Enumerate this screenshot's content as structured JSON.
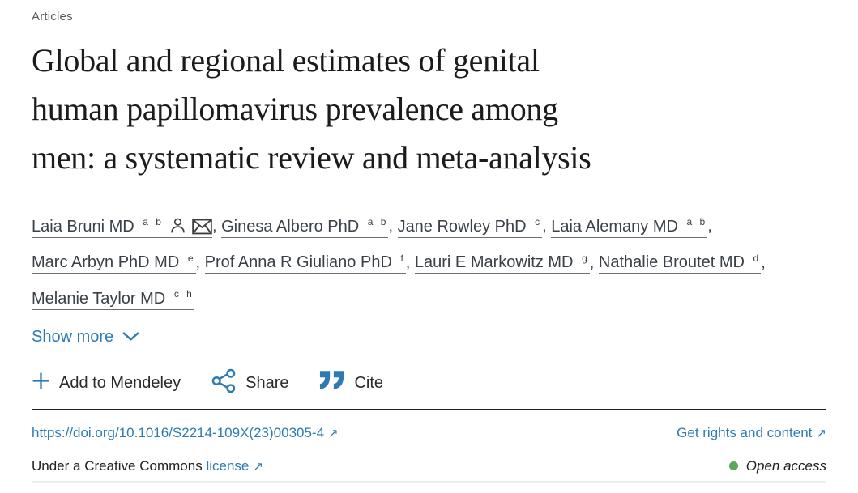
{
  "eyebrow": "Articles",
  "title": {
    "lines": [
      "Global and regional estimates of genital",
      "human papillomavirus prevalence among",
      "men: a systematic review and meta-analysis"
    ]
  },
  "authors": {
    "list": [
      {
        "name": "Laia Bruni MD",
        "sup": "a b",
        "icons": [
          "person-icon",
          "envelope-icon"
        ]
      },
      {
        "name": "Ginesa Albero PhD",
        "sup": "a b"
      },
      {
        "name": "Jane Rowley PhD",
        "sup": "c"
      },
      {
        "name": "Laia Alemany MD",
        "sup": "a b",
        "break_after": true
      },
      {
        "name": "Marc Arbyn PhD MD",
        "sup": "e"
      },
      {
        "name": "Prof Anna R Giuliano PhD",
        "sup": "f"
      },
      {
        "name": "Lauri E Markowitz MD",
        "sup": "g"
      },
      {
        "name": "Nathalie Broutet MD",
        "sup": "d",
        "break_after": true
      },
      {
        "name": "Melanie Taylor MD",
        "sup": "c h"
      }
    ],
    "separator": ", ",
    "show_more": "Show more"
  },
  "actions": {
    "add_to_mendeley": "Add to Mendeley",
    "share": "Share",
    "cite": "Cite"
  },
  "doi_bar": {
    "doi": "https://doi.org/10.1016/S2214-109X(23)00305-4",
    "rights": "Get rights and content",
    "external_arrow": "↗"
  },
  "license_bar": {
    "prefix": "Under a Creative Commons",
    "license_link": "license",
    "open_access": "Open access"
  },
  "colors": {
    "link_blue": "#2e7bb4",
    "open_access_green": "#5aa85a"
  }
}
